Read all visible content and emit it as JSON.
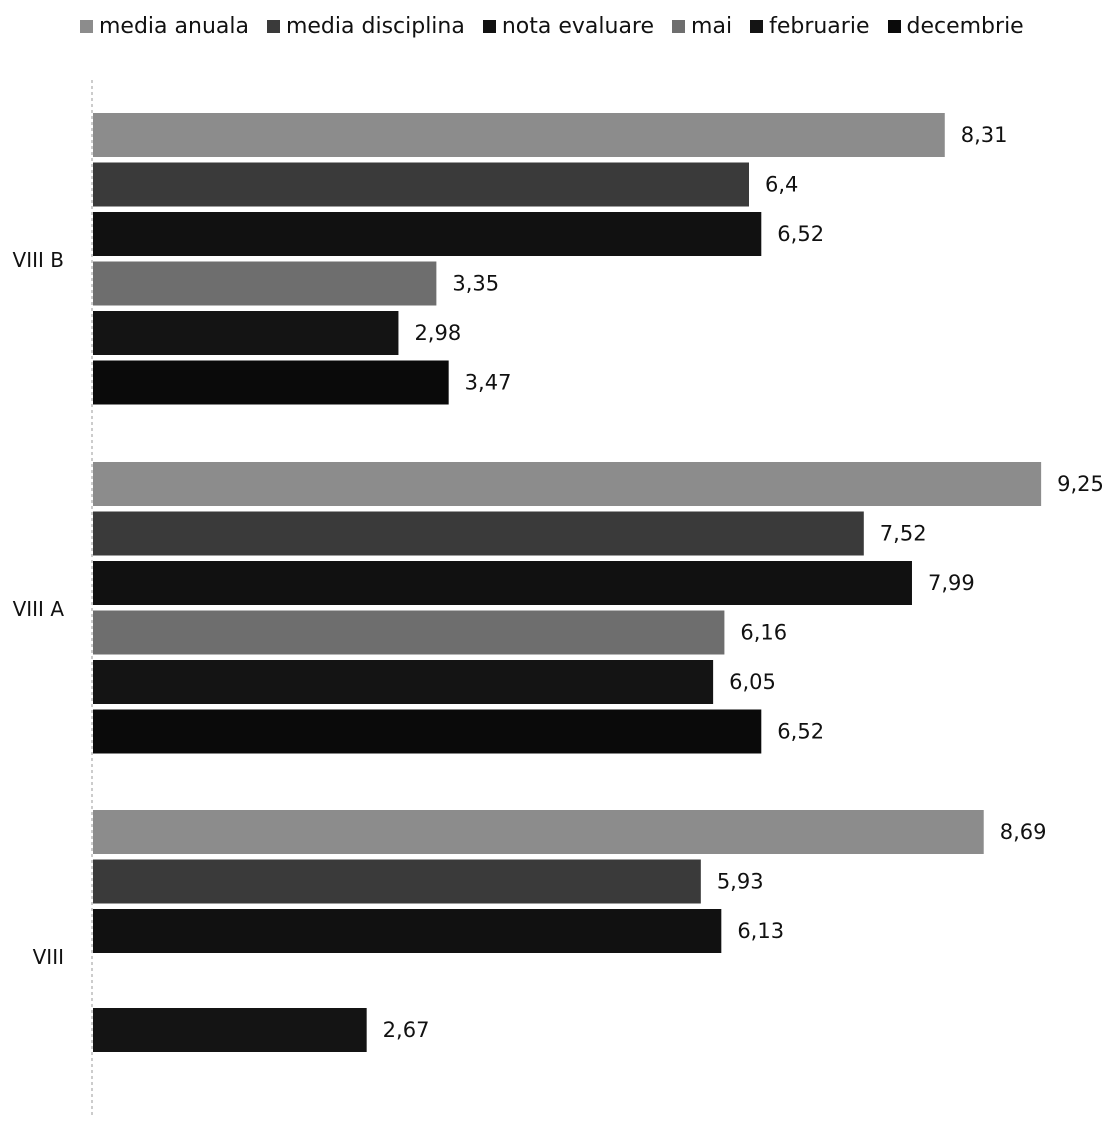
{
  "chart_data": {
    "type": "bar",
    "orientation": "horizontal",
    "legend_position": "top",
    "grid": false,
    "decimal_separator": ",",
    "xlim": [
      0,
      10
    ],
    "categories": [
      "VIII B",
      "VIII A",
      "VIII"
    ],
    "series": [
      {
        "name": "media anuala",
        "color": "#8c8c8c",
        "values": [
          8.31,
          9.25,
          8.69
        ]
      },
      {
        "name": "media disciplina",
        "color": "#3a3a3a",
        "values": [
          6.4,
          7.52,
          5.93
        ]
      },
      {
        "name": "nota evaluare",
        "color": "#111111",
        "values": [
          6.52,
          7.99,
          6.13
        ]
      },
      {
        "name": "mai",
        "color": "#6e6e6e",
        "values": [
          3.35,
          6.16,
          null
        ]
      },
      {
        "name": "februarie",
        "color": "#141414",
        "values": [
          2.98,
          6.05,
          2.67
        ]
      },
      {
        "name": "decembrie",
        "color": "#0a0a0a",
        "values": [
          3.47,
          6.52,
          null
        ]
      }
    ],
    "data_labels": [
      [
        "8,31",
        "6,4",
        "6,52",
        "3,35",
        "2,98",
        "3,47"
      ],
      [
        "9,25",
        "7,52",
        "7,99",
        "6,16",
        "6,05",
        "6,52"
      ],
      [
        "8,69",
        "5,93",
        "6,13",
        "",
        "2,67",
        ""
      ]
    ]
  }
}
